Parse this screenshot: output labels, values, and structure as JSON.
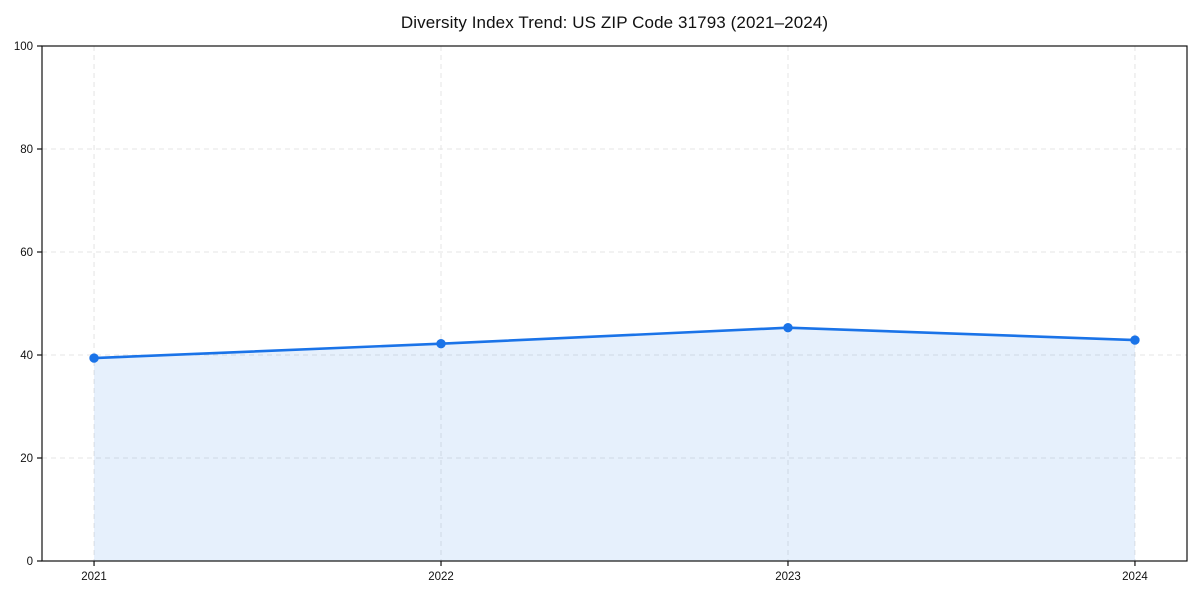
{
  "page": {
    "background_color": "#ffffff"
  },
  "chart_data": {
    "type": "area",
    "title": "Diversity Index Trend: US ZIP Code 31793 (2021–2024)",
    "categories": [
      "2021",
      "2022",
      "2023",
      "2024"
    ],
    "series": [
      {
        "name": "Diversity Index",
        "values": [
          39.4,
          42.2,
          45.3,
          42.9
        ]
      }
    ],
    "xlabel": "",
    "ylabel": "",
    "ylim": [
      0,
      100
    ],
    "yticks": [
      0,
      20,
      40,
      60,
      80,
      100
    ],
    "grid": true,
    "grid_style": "dashed",
    "legend_position": "none",
    "line_color": "#1a73e8",
    "fill_color": "rgba(26,115,232,0.11)",
    "axis_color": "#111111",
    "grid_color": "#e4e4e4",
    "marker": "circle"
  }
}
